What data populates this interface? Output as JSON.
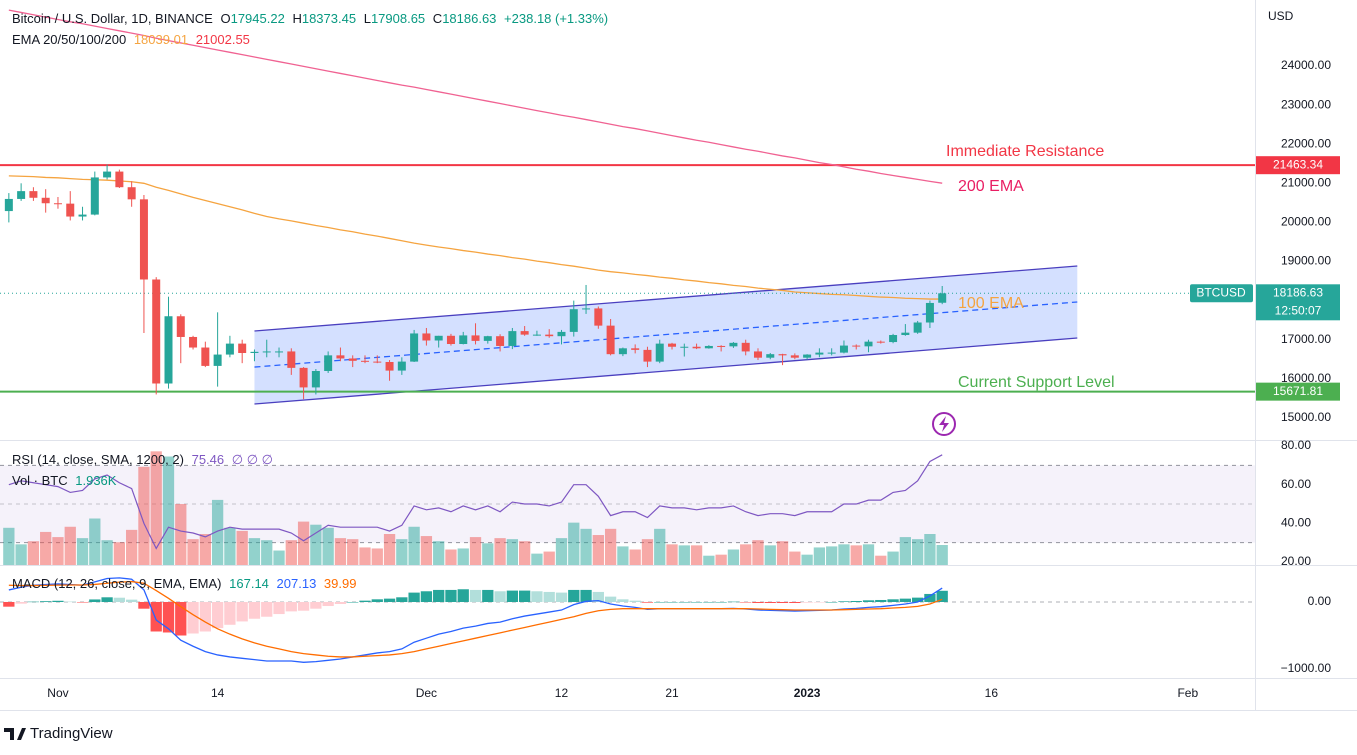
{
  "header": {
    "symbol": "Bitcoin / U.S. Dollar, 1D, BINANCE",
    "ohlc_labels": [
      "O",
      "H",
      "L",
      "C"
    ],
    "change": "+238.18 (+1.33%)",
    "ema_label": "EMA 20/50/100/200",
    "currency": "USD",
    "symbol_tag": "BTCUSD",
    "countdown": "12:50:07",
    "brand": "TradingView"
  },
  "chart_data": {
    "type": "candlestick",
    "candles": [
      [
        20290,
        20750,
        20000,
        20600,
        3600
      ],
      [
        20600,
        21000,
        20550,
        20800,
        2000
      ],
      [
        20800,
        20900,
        20550,
        20630,
        2300
      ],
      [
        20630,
        20850,
        20250,
        20490,
        3200
      ],
      [
        20490,
        20650,
        20350,
        20480,
        2700
      ],
      [
        20480,
        20800,
        20050,
        20150,
        3700
      ],
      [
        20150,
        20400,
        20050,
        20200,
        2600
      ],
      [
        20200,
        21300,
        20180,
        21150,
        4500
      ],
      [
        21150,
        21480,
        21100,
        21300,
        2400
      ],
      [
        21300,
        21350,
        20880,
        20900,
        2200
      ],
      [
        20900,
        21050,
        20400,
        20590,
        3400
      ],
      [
        20590,
        20700,
        17170,
        18540,
        9500
      ],
      [
        18540,
        18600,
        15600,
        15880,
        11000
      ],
      [
        15880,
        18100,
        15750,
        17600,
        10500
      ],
      [
        17600,
        17650,
        16400,
        17070,
        5900
      ],
      [
        17070,
        17100,
        16750,
        16800,
        2500
      ],
      [
        16800,
        16950,
        16300,
        16330,
        3000
      ],
      [
        16330,
        17700,
        15800,
        16620,
        6300
      ],
      [
        16620,
        17100,
        16550,
        16900,
        3600
      ],
      [
        16900,
        17000,
        16400,
        16660,
        3300
      ],
      [
        16660,
        16750,
        16450,
        16690,
        2600
      ],
      [
        16690,
        17000,
        16550,
        16700,
        2400
      ],
      [
        16700,
        16800,
        16550,
        16700,
        1400
      ],
      [
        16700,
        16780,
        16100,
        16280,
        2400
      ],
      [
        16280,
        16300,
        15480,
        15780,
        4200
      ],
      [
        15780,
        16250,
        15600,
        16200,
        3900
      ],
      [
        16200,
        16700,
        16150,
        16600,
        3600
      ],
      [
        16600,
        16800,
        16450,
        16520,
        2600
      ],
      [
        16520,
        16600,
        16300,
        16460,
        2500
      ],
      [
        16460,
        16600,
        16400,
        16440,
        1700
      ],
      [
        16440,
        16600,
        16400,
        16430,
        1600
      ],
      [
        16430,
        16480,
        15950,
        16210,
        3000
      ],
      [
        16210,
        16550,
        16100,
        16440,
        2500
      ],
      [
        16440,
        17250,
        16430,
        17160,
        3700
      ],
      [
        17160,
        17300,
        16850,
        16980,
        2800
      ],
      [
        16980,
        17100,
        16800,
        17100,
        2300
      ],
      [
        17100,
        17150,
        16850,
        16890,
        1500
      ],
      [
        16890,
        17200,
        16880,
        17110,
        1600
      ],
      [
        17110,
        17420,
        16880,
        16970,
        2700
      ],
      [
        16970,
        17100,
        16900,
        17090,
        2100
      ],
      [
        17090,
        17140,
        16700,
        16840,
        2600
      ],
      [
        16840,
        17300,
        16760,
        17220,
        2500
      ],
      [
        17220,
        17350,
        17100,
        17130,
        2300
      ],
      [
        17130,
        17230,
        17100,
        17130,
        1100
      ],
      [
        17130,
        17270,
        17050,
        17090,
        1300
      ],
      [
        17090,
        17250,
        16880,
        17200,
        2600
      ],
      [
        17200,
        18000,
        17080,
        17780,
        4100
      ],
      [
        17780,
        18400,
        17660,
        17800,
        3500
      ],
      [
        17800,
        17850,
        17280,
        17360,
        2900
      ],
      [
        17360,
        17530,
        16600,
        16630,
        3500
      ],
      [
        16630,
        16800,
        16580,
        16780,
        1800
      ],
      [
        16780,
        16880,
        16650,
        16740,
        1500
      ],
      [
        16740,
        16820,
        16300,
        16440,
        2500
      ],
      [
        16440,
        17000,
        16400,
        16900,
        3500
      ],
      [
        16900,
        16920,
        16750,
        16820,
        2000
      ],
      [
        16820,
        16900,
        16570,
        16820,
        1900
      ],
      [
        16820,
        16900,
        16760,
        16780,
        1900
      ],
      [
        16780,
        16860,
        16770,
        16840,
        900
      ],
      [
        16840,
        16860,
        16700,
        16830,
        1000
      ],
      [
        16830,
        16940,
        16790,
        16920,
        1500
      ],
      [
        16920,
        17000,
        16600,
        16700,
        2000
      ],
      [
        16700,
        16780,
        16480,
        16540,
        2400
      ],
      [
        16540,
        16660,
        16500,
        16630,
        1900
      ],
      [
        16630,
        16640,
        16350,
        16600,
        2300
      ],
      [
        16600,
        16650,
        16500,
        16540,
        1300
      ],
      [
        16540,
        16630,
        16490,
        16620,
        1000
      ],
      [
        16620,
        16780,
        16550,
        16670,
        1700
      ],
      [
        16670,
        16780,
        16600,
        16670,
        1800
      ],
      [
        16670,
        16980,
        16650,
        16850,
        2000
      ],
      [
        16850,
        16880,
        16750,
        16830,
        1900
      ],
      [
        16830,
        17000,
        16680,
        16950,
        2000
      ],
      [
        16950,
        16980,
        16900,
        16940,
        900
      ],
      [
        16940,
        17150,
        16910,
        17120,
        1300
      ],
      [
        17120,
        17400,
        17100,
        17180,
        2700
      ],
      [
        17180,
        17480,
        17150,
        17440,
        2500
      ],
      [
        17440,
        18000,
        17300,
        17940,
        3000
      ],
      [
        17945.22,
        18373.45,
        17908.65,
        18186.63,
        1936
      ]
    ],
    "up_color": "#26a69a",
    "down_color": "#ef5350",
    "xlim": [
      -0.72,
      101.47
    ],
    "xticks": [
      {
        "value": 4,
        "label": "Nov"
      },
      {
        "value": 17,
        "label": "14"
      },
      {
        "value": 34,
        "label": "Dec"
      },
      {
        "value": 45,
        "label": "12"
      },
      {
        "value": 54,
        "label": "21"
      },
      {
        "value": 65,
        "label": "2023",
        "bold": true
      },
      {
        "value": 80,
        "label": "16"
      },
      {
        "value": 96,
        "label": "Feb"
      }
    ],
    "ylim": [
      14435,
      25688
    ],
    "yticks": [
      {
        "value": 15000,
        "label": "15000.00"
      },
      {
        "value": 16000,
        "label": "16000.00"
      },
      {
        "value": 17000,
        "label": "17000.00"
      },
      {
        "value": 18000,
        "label": "18000.00"
      },
      {
        "value": 19000,
        "label": "19000.00"
      },
      {
        "value": 20000,
        "label": "20000.00"
      },
      {
        "value": 21000,
        "label": "21000.00"
      },
      {
        "value": 22000,
        "label": "22000.00"
      },
      {
        "value": 23000,
        "label": "23000.00"
      },
      {
        "value": 24000,
        "label": "24000.00"
      }
    ],
    "ema100": {
      "label": "100 EMA",
      "color": "#f5a440",
      "values": [
        21190,
        21180,
        21170,
        21150,
        21140,
        21120,
        21100,
        21090,
        21080,
        21060,
        21040,
        21000,
        20900,
        20820,
        20730,
        20640,
        20560,
        20480,
        20400,
        20320,
        20230,
        20150,
        20090,
        20040,
        19980,
        19920,
        19870,
        19810,
        19760,
        19700,
        19650,
        19590,
        19530,
        19470,
        19420,
        19370,
        19330,
        19280,
        19240,
        19190,
        19150,
        19100,
        19060,
        19010,
        18970,
        18920,
        18880,
        18830,
        18780,
        18740,
        18710,
        18670,
        18640,
        18600,
        18570,
        18530,
        18500,
        18460,
        18430,
        18390,
        18360,
        18320,
        18290,
        18260,
        18220,
        18200,
        18180,
        18160,
        18150,
        18130,
        18110,
        18090,
        18080,
        18060,
        18050,
        18040,
        18039.01
      ]
    },
    "ema200": {
      "label": "200 EMA",
      "color": "#f06292",
      "values": [
        25430,
        25370,
        25310,
        25250,
        25190,
        25130,
        25080,
        25020,
        24960,
        24900,
        24840,
        24780,
        24710,
        24650,
        24590,
        24530,
        24470,
        24410,
        24350,
        24290,
        24230,
        24170,
        24110,
        24050,
        23990,
        23930,
        23870,
        23810,
        23750,
        23690,
        23630,
        23570,
        23510,
        23460,
        23400,
        23340,
        23280,
        23220,
        23160,
        23100,
        23040,
        22980,
        22920,
        22860,
        22800,
        22740,
        22690,
        22630,
        22570,
        22510,
        22450,
        22400,
        22340,
        22280,
        22220,
        22160,
        22100,
        22050,
        21990,
        21930,
        21870,
        21820,
        21760,
        21700,
        21650,
        21590,
        21530,
        21480,
        21420,
        21360,
        21310,
        21250,
        21200,
        21150,
        21100,
        21050,
        21002.55
      ]
    },
    "resistance": {
      "label": "Immediate Resistance",
      "value": 21463.34,
      "color": "#f23645"
    },
    "support": {
      "label": "Current Support Level",
      "value": 15671.81,
      "color": "#4caf50"
    },
    "channel": {
      "x": [
        20,
        87
      ],
      "upper": [
        17222,
        18885
      ],
      "middle": [
        16300,
        17965
      ],
      "lower": [
        15355,
        17043
      ]
    },
    "rsi": {
      "label": "RSI (14, close, SMA, 1200, 2)",
      "empty": "∅  ∅  ∅",
      "color": "#7e57c2",
      "levels": [
        30,
        50,
        70
      ],
      "ylim": [
        18.45,
        82.6
      ],
      "yticks": [
        {
          "value": 20,
          "label": "20.00"
        },
        {
          "value": 40,
          "label": "40.00"
        },
        {
          "value": 60,
          "label": "60.00"
        },
        {
          "value": 80,
          "label": "80.00"
        }
      ],
      "values": [
        60,
        62,
        61,
        60,
        59,
        56,
        57,
        63,
        65,
        61,
        58,
        40,
        27,
        38,
        36,
        35,
        33,
        36,
        38,
        37,
        37,
        37,
        37,
        35,
        31,
        35,
        39,
        38,
        38,
        38,
        38,
        36,
        39,
        49,
        47,
        48,
        46,
        49,
        47,
        49,
        46,
        51,
        50,
        50,
        49,
        51,
        60,
        60,
        54,
        44,
        46,
        46,
        43,
        49,
        48,
        48,
        47,
        48,
        48,
        49,
        46,
        44,
        45,
        45,
        44,
        46,
        46,
        46,
        50,
        50,
        52,
        52,
        56,
        57,
        62,
        72,
        75.46
      ]
    },
    "volume": {
      "label": "Vol · BTC",
      "last_label": "1.936K",
      "vlim": [
        0,
        12000
      ]
    },
    "macd": {
      "label": "MACD (12, 26, close, 9, EMA, EMA)",
      "ylim": [
        -1134,
        537
      ],
      "macd_color": "#2962ff",
      "signal_color": "#ff6d00",
      "yticks": [
        {
          "value": 0,
          "label": "0.00"
        },
        {
          "value": -1000,
          "label": "−1000.00"
        }
      ],
      "hist": [
        -70,
        -25,
        5,
        12,
        18,
        6,
        -3,
        38,
        70,
        64,
        35,
        -100,
        -440,
        -455,
        -500,
        -470,
        -440,
        -390,
        -340,
        -290,
        -250,
        -220,
        -180,
        -140,
        -130,
        -100,
        -60,
        -30,
        0,
        20,
        40,
        50,
        70,
        140,
        160,
        180,
        180,
        190,
        180,
        180,
        160,
        170,
        170,
        160,
        150,
        140,
        180,
        180,
        150,
        80,
        40,
        20,
        -10,
        0,
        0,
        0,
        0,
        0,
        0,
        5,
        -5,
        -15,
        -15,
        -15,
        -15,
        -10,
        -5,
        0,
        10,
        15,
        25,
        30,
        40,
        50,
        65,
        120,
        167.14
      ],
      "macd": [
        180,
        220,
        250,
        260,
        270,
        260,
        250,
        300,
        350,
        360,
        340,
        180,
        -270,
        -400,
        -570,
        -660,
        -740,
        -790,
        -820,
        -840,
        -860,
        -880,
        -880,
        -880,
        -900,
        -890,
        -870,
        -850,
        -820,
        -790,
        -760,
        -740,
        -700,
        -600,
        -540,
        -480,
        -440,
        -390,
        -360,
        -320,
        -300,
        -250,
        -210,
        -180,
        -150,
        -120,
        -40,
        10,
        20,
        -30,
        -60,
        -80,
        -110,
        -100,
        -100,
        -100,
        -100,
        -100,
        -100,
        -95,
        -105,
        -120,
        -125,
        -130,
        -135,
        -130,
        -125,
        -120,
        -105,
        -95,
        -80,
        -70,
        -50,
        -30,
        0,
        90,
        207.13
      ],
      "signal": [
        250,
        245,
        245,
        248,
        252,
        254,
        253,
        262,
        280,
        296,
        305,
        280,
        170,
        55,
        -70,
        -190,
        -300,
        -400,
        -480,
        -550,
        -610,
        -660,
        -700,
        -740,
        -770,
        -790,
        -810,
        -820,
        -820,
        -810,
        -800,
        -790,
        -770,
        -740,
        -700,
        -660,
        -620,
        -580,
        -540,
        -500,
        -460,
        -420,
        -380,
        -340,
        -300,
        -260,
        -220,
        -170,
        -130,
        -110,
        -100,
        -100,
        -100,
        -100,
        -100,
        -100,
        -100,
        -100,
        -100,
        -100,
        -100,
        -105,
        -110,
        -115,
        -120,
        -120,
        -120,
        -120,
        -115,
        -110,
        -105,
        -100,
        -90,
        -80,
        -65,
        -30,
        39.99
      ]
    }
  }
}
